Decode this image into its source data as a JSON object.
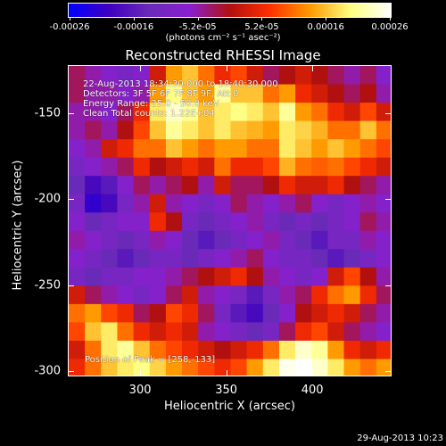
{
  "colorbar": {
    "ticks": [
      "-0.00026",
      "-0.00016",
      "-5.2e-05",
      "5.2e-05",
      "0.00016",
      "0.00026"
    ],
    "unit": "(photons cm⁻² s⁻¹ asec⁻²)"
  },
  "annotations": {
    "time": "22-Aug-2013 18:34:30.000 to 18:40:30.000",
    "detectors": "Detectors: 3F 5F 6F 7F 8F 9F, Att 0",
    "energy": "Energy Range: 25.0 - 50.0 keV",
    "clean": "Clean    Total counts: 1.22E+04",
    "peak": "Position of Peak = [258,-133]"
  },
  "footer_date": "29-Aug-2013 10:23",
  "chart_data": {
    "type": "heatmap",
    "title": "Reconstructed RHESSI Image",
    "xlabel": "Heliocentric X (arcsec)",
    "ylabel": "Heliocentric Y (arcsec)",
    "xlim": [
      258,
      446
    ],
    "ylim": [
      -303,
      -122
    ],
    "xticks": [
      "300",
      "350",
      "400"
    ],
    "yticks": [
      "-150",
      "-200",
      "-250",
      "-300"
    ],
    "zlim": [
      -0.00026,
      0.00026
    ],
    "colormap": [
      "#0000ff",
      "#3f00c0",
      "#6a2ab8",
      "#8a1fd0",
      "#b01010",
      "#ff3000",
      "#ff9a00",
      "#ffff80",
      "#ffffff"
    ],
    "grid": false,
    "intensity_grid": [
      [
        0.45,
        0.4,
        0.35,
        0.3,
        0.35,
        0.55,
        0.75,
        0.8,
        0.7,
        0.6,
        0.65,
        0.55,
        0.45,
        0.5,
        0.55,
        0.5,
        0.45,
        0.4,
        0.45,
        0.35
      ],
      [
        0.45,
        0.4,
        0.4,
        0.35,
        0.4,
        0.75,
        0.88,
        0.8,
        0.75,
        0.9,
        0.8,
        0.8,
        0.7,
        0.75,
        0.6,
        0.55,
        0.5,
        0.45,
        0.5,
        0.4
      ],
      [
        0.4,
        0.4,
        0.35,
        0.45,
        0.6,
        0.85,
        0.95,
        0.9,
        0.8,
        0.85,
        0.88,
        0.85,
        0.8,
        0.9,
        0.75,
        0.7,
        0.6,
        0.55,
        0.65,
        0.55
      ],
      [
        0.4,
        0.45,
        0.4,
        0.5,
        0.65,
        0.8,
        0.9,
        0.85,
        0.8,
        0.85,
        0.8,
        0.78,
        0.75,
        0.85,
        0.82,
        0.78,
        0.7,
        0.7,
        0.8,
        0.7
      ],
      [
        0.35,
        0.4,
        0.55,
        0.6,
        0.7,
        0.7,
        0.8,
        0.75,
        0.7,
        0.75,
        0.75,
        0.7,
        0.7,
        0.85,
        0.8,
        0.75,
        0.8,
        0.75,
        0.7,
        0.65
      ],
      [
        0.3,
        0.35,
        0.4,
        0.45,
        0.6,
        0.5,
        0.55,
        0.6,
        0.55,
        0.7,
        0.6,
        0.6,
        0.65,
        0.78,
        0.7,
        0.68,
        0.7,
        0.65,
        0.6,
        0.55
      ],
      [
        0.25,
        0.15,
        0.2,
        0.35,
        0.45,
        0.4,
        0.45,
        0.5,
        0.4,
        0.55,
        0.45,
        0.45,
        0.5,
        0.6,
        0.55,
        0.55,
        0.6,
        0.5,
        0.45,
        0.4
      ],
      [
        0.3,
        0.1,
        0.15,
        0.3,
        0.4,
        0.55,
        0.4,
        0.35,
        0.3,
        0.35,
        0.45,
        0.4,
        0.35,
        0.4,
        0.45,
        0.35,
        0.3,
        0.35,
        0.4,
        0.35
      ],
      [
        0.35,
        0.25,
        0.3,
        0.35,
        0.35,
        0.6,
        0.5,
        0.3,
        0.25,
        0.3,
        0.35,
        0.4,
        0.3,
        0.25,
        0.3,
        0.25,
        0.3,
        0.35,
        0.45,
        0.4
      ],
      [
        0.4,
        0.35,
        0.3,
        0.25,
        0.3,
        0.4,
        0.35,
        0.25,
        0.2,
        0.25,
        0.3,
        0.35,
        0.4,
        0.3,
        0.25,
        0.2,
        0.3,
        0.3,
        0.4,
        0.35
      ],
      [
        0.35,
        0.3,
        0.25,
        0.2,
        0.25,
        0.3,
        0.3,
        0.25,
        0.3,
        0.35,
        0.4,
        0.45,
        0.35,
        0.3,
        0.3,
        0.25,
        0.2,
        0.25,
        0.3,
        0.35
      ],
      [
        0.3,
        0.25,
        0.3,
        0.3,
        0.35,
        0.35,
        0.4,
        0.45,
        0.5,
        0.55,
        0.6,
        0.5,
        0.4,
        0.35,
        0.3,
        0.35,
        0.55,
        0.65,
        0.5,
        0.4
      ],
      [
        0.55,
        0.45,
        0.4,
        0.35,
        0.3,
        0.35,
        0.45,
        0.55,
        0.4,
        0.35,
        0.3,
        0.2,
        0.3,
        0.4,
        0.45,
        0.6,
        0.7,
        0.75,
        0.6,
        0.45
      ],
      [
        0.7,
        0.75,
        0.65,
        0.6,
        0.45,
        0.5,
        0.65,
        0.6,
        0.45,
        0.3,
        0.2,
        0.15,
        0.25,
        0.35,
        0.5,
        0.55,
        0.6,
        0.55,
        0.45,
        0.4
      ],
      [
        0.65,
        0.8,
        0.85,
        0.7,
        0.6,
        0.55,
        0.6,
        0.55,
        0.4,
        0.35,
        0.3,
        0.25,
        0.3,
        0.45,
        0.6,
        0.65,
        0.55,
        0.45,
        0.4,
        0.35
      ],
      [
        0.55,
        0.7,
        0.85,
        0.9,
        0.8,
        0.7,
        0.65,
        0.6,
        0.55,
        0.5,
        0.55,
        0.6,
        0.7,
        0.85,
        0.95,
        0.9,
        0.75,
        0.6,
        0.55,
        0.6
      ],
      [
        0.6,
        0.7,
        0.8,
        0.85,
        0.88,
        0.82,
        0.75,
        0.7,
        0.65,
        0.6,
        0.65,
        0.75,
        0.85,
        0.98,
        1.0,
        0.95,
        0.85,
        0.75,
        0.7,
        0.75
      ]
    ]
  }
}
